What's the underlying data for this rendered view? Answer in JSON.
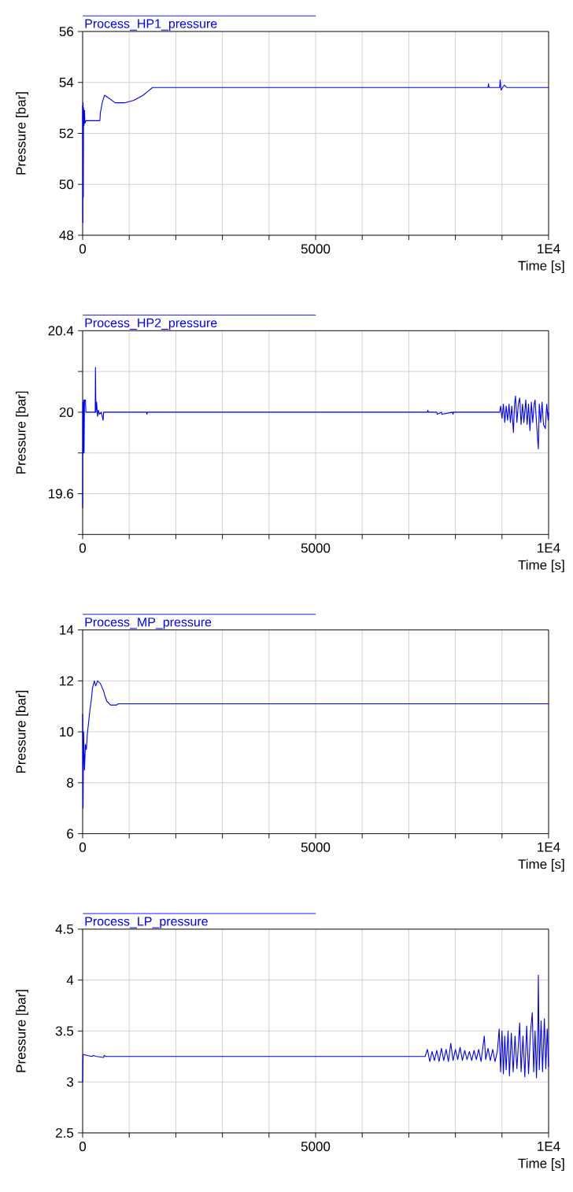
{
  "chart_data": [
    {
      "type": "line",
      "xlabel": "Time [s]",
      "ylabel": "Pressure [bar]",
      "xlim": [
        0,
        10000
      ],
      "ylim": [
        48,
        56
      ],
      "xticks": [
        0,
        {
          "value": 1000,
          "label": null
        },
        {
          "value": 2000,
          "label": null
        },
        {
          "value": 3000,
          "label": null
        },
        {
          "value": 4000,
          "label": null
        },
        5000,
        {
          "value": 6000,
          "label": null
        },
        {
          "value": 7000,
          "label": null
        },
        {
          "value": 8000,
          "label": null
        },
        {
          "value": 9000,
          "label": null
        },
        {
          "value": 10000,
          "label": "1E4"
        }
      ],
      "yticks": [
        48,
        50,
        52,
        54,
        56
      ],
      "grid": true,
      "legend": "top left",
      "series": [
        {
          "name": "Process_HP1_pressure",
          "color": "#0000ff",
          "x": [
            0,
            5,
            10,
            15,
            20,
            30,
            40,
            50,
            70,
            370,
            380,
            420,
            470,
            550,
            700,
            900,
            1100,
            1300,
            1400,
            1500,
            8700,
            8710,
            8720,
            8950,
            8960,
            8980,
            9050,
            9100,
            10000
          ],
          "values": [
            53.1,
            48.5,
            53.2,
            49.5,
            53.0,
            52.3,
            52.9,
            52.4,
            52.5,
            52.5,
            52.8,
            53.2,
            53.5,
            53.4,
            53.2,
            53.2,
            53.3,
            53.5,
            53.65,
            53.8,
            53.8,
            53.95,
            53.8,
            53.8,
            54.1,
            53.7,
            53.9,
            53.8,
            53.8
          ]
        }
      ]
    },
    {
      "type": "line",
      "xlabel": "Time [s]",
      "ylabel": "Pressure [bar]",
      "xlim": [
        0,
        10000
      ],
      "ylim": [
        19.4,
        20.4
      ],
      "xticks": [
        0,
        {
          "value": 1000,
          "label": null
        },
        {
          "value": 2000,
          "label": null
        },
        {
          "value": 3000,
          "label": null
        },
        {
          "value": 4000,
          "label": null
        },
        5000,
        {
          "value": 6000,
          "label": null
        },
        {
          "value": 7000,
          "label": null
        },
        {
          "value": 8000,
          "label": null
        },
        {
          "value": 9000,
          "label": null
        },
        {
          "value": 10000,
          "label": "1E4"
        }
      ],
      "yticks": [
        {
          "value": 19.4,
          "label": null
        },
        19.6,
        {
          "value": 19.8,
          "label": null
        },
        20,
        {
          "value": 20.2,
          "label": null
        },
        20.4
      ],
      "grid": true,
      "legend": "top left",
      "series": [
        {
          "name": "Process_HP2_pressure",
          "color": "#0000ff",
          "x": [
            0,
            5,
            10,
            20,
            30,
            40,
            60,
            70,
            270,
            275,
            285,
            300,
            320,
            340,
            360,
            400,
            440,
            450,
            470,
            500,
            1370,
            1380,
            1390,
            7400,
            7410,
            7420,
            7600,
            7610,
            7700,
            7710,
            7940,
            7950,
            7960,
            8950,
            8970,
            9000,
            9030,
            9060,
            9090,
            9120,
            9150,
            9180,
            9210,
            9245,
            9270,
            9290,
            9320,
            9350,
            9380,
            9410,
            9440,
            9470,
            9510,
            9540,
            9570,
            9600,
            9630,
            9660,
            9690,
            9710,
            9740,
            9780,
            9800,
            9830,
            9860,
            9890,
            9930,
            9960,
            9990,
            10000
          ],
          "values": [
            19.53,
            20.05,
            19.8,
            20.06,
            19.8,
            20.06,
            20.06,
            20.0,
            20.0,
            20.22,
            20.0,
            20.05,
            19.98,
            20.01,
            19.99,
            20.0,
            19.96,
            20.0,
            20.0,
            20.0,
            20.0,
            19.99,
            20.0,
            20.0,
            20.01,
            20.0,
            20.0,
            19.99,
            20.0,
            19.99,
            20.0,
            19.99,
            20.0,
            20.0,
            20.03,
            19.97,
            20.04,
            19.95,
            20.03,
            19.96,
            20.04,
            19.95,
            20.03,
            19.9,
            20.04,
            20.08,
            19.95,
            20.04,
            20.07,
            19.94,
            20.04,
            19.95,
            20.06,
            19.94,
            20.04,
            19.91,
            20.05,
            19.95,
            20.04,
            20.06,
            19.95,
            19.82,
            20.04,
            19.95,
            20.05,
            19.94,
            19.92,
            20.04,
            19.96,
            20.0
          ]
        }
      ]
    },
    {
      "type": "line",
      "xlabel": "Time [s]",
      "ylabel": "Pressure [bar]",
      "xlim": [
        0,
        10000
      ],
      "ylim": [
        6,
        14
      ],
      "xticks": [
        0,
        {
          "value": 1000,
          "label": null
        },
        {
          "value": 2000,
          "label": null
        },
        {
          "value": 3000,
          "label": null
        },
        {
          "value": 4000,
          "label": null
        },
        5000,
        {
          "value": 6000,
          "label": null
        },
        {
          "value": 7000,
          "label": null
        },
        {
          "value": 8000,
          "label": null
        },
        {
          "value": 9000,
          "label": null
        },
        {
          "value": 10000,
          "label": "1E4"
        }
      ],
      "yticks": [
        6,
        8,
        10,
        12,
        14
      ],
      "grid": true,
      "legend": "top left",
      "series": [
        {
          "name": "Process_MP_pressure",
          "color": "#0000ff",
          "x": [
            0,
            10,
            20,
            40,
            60,
            80,
            100,
            130,
            160,
            190,
            210,
            250,
            280,
            320,
            380,
            450,
            480,
            520,
            600,
            730,
            760,
            10000
          ],
          "values": [
            10.7,
            7.0,
            10.0,
            8.5,
            9.5,
            9.3,
            9.9,
            10.4,
            10.9,
            11.3,
            11.7,
            12.0,
            11.8,
            12.0,
            11.9,
            11.6,
            11.4,
            11.2,
            11.05,
            11.05,
            11.1,
            11.1
          ]
        }
      ]
    },
    {
      "type": "line",
      "xlabel": "Time [s]",
      "ylabel": "Pressure [bar]",
      "xlim": [
        0,
        10000
      ],
      "ylim": [
        2.5,
        4.5
      ],
      "xticks": [
        0,
        {
          "value": 1000,
          "label": null
        },
        {
          "value": 2000,
          "label": null
        },
        {
          "value": 3000,
          "label": null
        },
        {
          "value": 4000,
          "label": null
        },
        5000,
        {
          "value": 6000,
          "label": null
        },
        {
          "value": 7000,
          "label": null
        },
        {
          "value": 8000,
          "label": null
        },
        {
          "value": 9000,
          "label": null
        },
        {
          "value": 10000,
          "label": "1E4"
        }
      ],
      "yticks": [
        2.5,
        3,
        3.5,
        4,
        4.5
      ],
      "grid": true,
      "legend": "top left",
      "series": [
        {
          "name": "Process_LP_pressure",
          "color": "#0000ff",
          "x": [
            0,
            10,
            20,
            100,
            200,
            230,
            300,
            450,
            460,
            500,
            7350,
            7400,
            7450,
            7500,
            7550,
            7600,
            7650,
            7700,
            7750,
            7800,
            7850,
            7900,
            7950,
            8000,
            8050,
            8100,
            8150,
            8200,
            8250,
            8300,
            8350,
            8400,
            8450,
            8500,
            8550,
            8620,
            8650,
            8700,
            8750,
            8800,
            8850,
            8900,
            8940,
            8970,
            9000,
            9030,
            9060,
            9090,
            9130,
            9160,
            9200,
            9240,
            9280,
            9320,
            9380,
            9410,
            9450,
            9490,
            9530,
            9570,
            9610,
            9650,
            9680,
            9710,
            9740,
            9770,
            9780,
            9800,
            9840,
            9870,
            9910,
            9940,
            9970,
            10000
          ],
          "values": [
            3.0,
            3.27,
            3.27,
            3.26,
            3.25,
            3.26,
            3.25,
            3.24,
            3.26,
            3.25,
            3.25,
            3.32,
            3.2,
            3.3,
            3.21,
            3.31,
            3.2,
            3.33,
            3.21,
            3.32,
            3.2,
            3.38,
            3.21,
            3.32,
            3.22,
            3.34,
            3.21,
            3.31,
            3.22,
            3.3,
            3.21,
            3.31,
            3.22,
            3.32,
            3.2,
            3.45,
            3.22,
            3.33,
            3.21,
            3.32,
            3.2,
            3.3,
            3.52,
            3.1,
            3.5,
            3.08,
            3.45,
            3.12,
            3.5,
            3.06,
            3.48,
            3.1,
            3.45,
            3.13,
            3.58,
            3.1,
            3.45,
            3.05,
            3.55,
            3.08,
            3.48,
            3.68,
            3.1,
            3.5,
            3.04,
            3.55,
            4.05,
            3.12,
            3.6,
            3.1,
            3.62,
            3.13,
            3.52,
            3.15
          ]
        }
      ]
    }
  ]
}
